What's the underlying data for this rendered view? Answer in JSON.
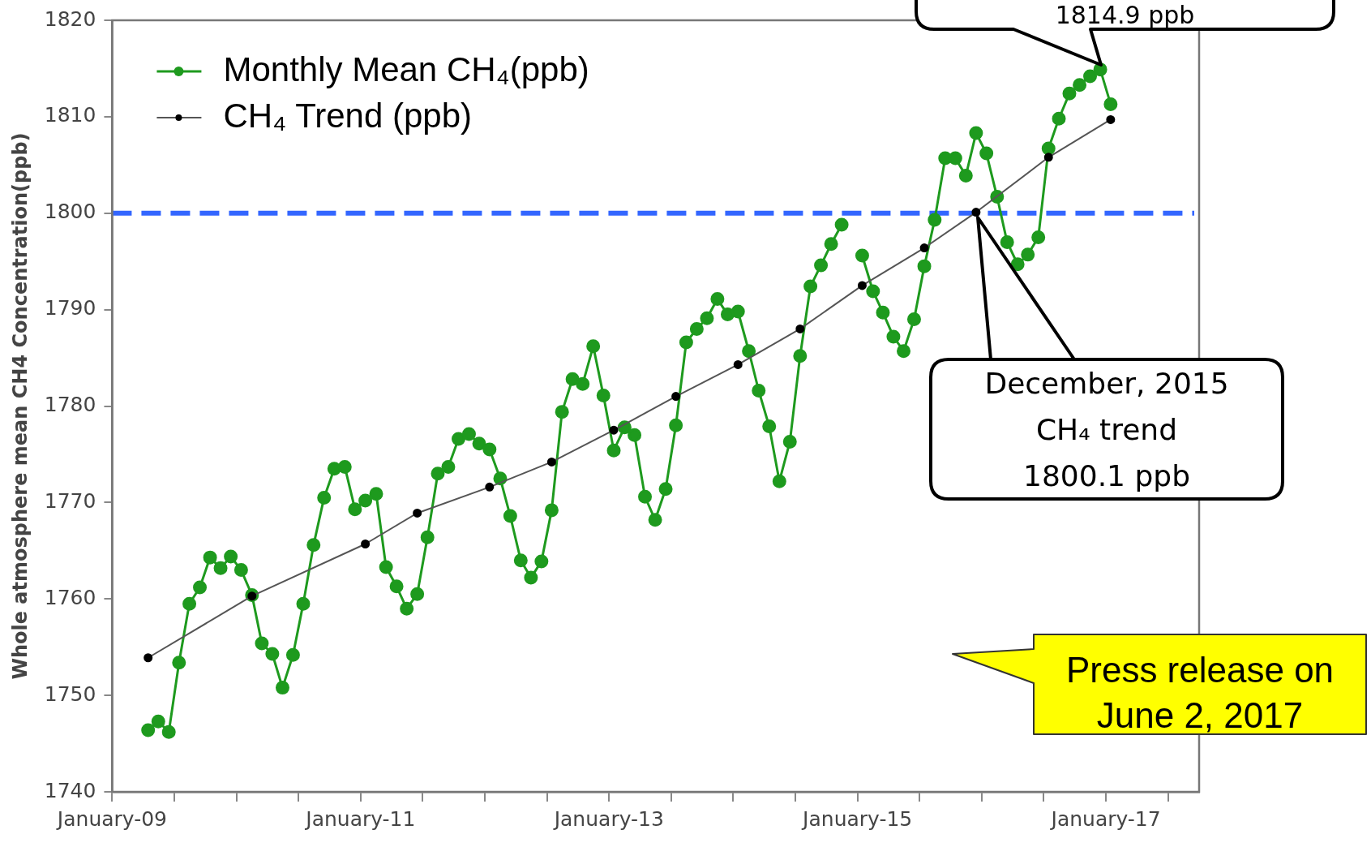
{
  "chart_data": {
    "type": "line",
    "ylabel": "Whole atmosphere mean CH4 Concentration(ppb)",
    "legend": "top left",
    "marker": "circle",
    "grid": false,
    "x": [
      "2009-04-15",
      "2009-05-15",
      "2009-06-15",
      "2009-07-15",
      "2009-08-15",
      "2009-09-15",
      "2009-10-15",
      "2009-11-15",
      "2009-12-15",
      "2010-01-15",
      "2010-02-15",
      "2010-03-15",
      "2010-04-15",
      "2010-05-15",
      "2010-06-15",
      "2010-07-15",
      "2010-08-15",
      "2010-09-15",
      "2010-10-15",
      "2010-11-15",
      "2010-12-15",
      "2011-01-15",
      "2011-02-15",
      "2011-03-15",
      "2011-04-15",
      "2011-05-15",
      "2011-06-15",
      "2011-07-15",
      "2011-08-15",
      "2011-09-15",
      "2011-10-15",
      "2011-11-15",
      "2011-12-15",
      "2012-01-15",
      "2012-02-15",
      "2012-03-15",
      "2012-04-15",
      "2012-05-15",
      "2012-06-15",
      "2012-07-15",
      "2012-08-15",
      "2012-09-15",
      "2012-10-15",
      "2012-11-15",
      "2012-12-15",
      "2013-01-15",
      "2013-02-15",
      "2013-03-15",
      "2013-04-15",
      "2013-05-15",
      "2013-06-15",
      "2013-07-15",
      "2013-08-15",
      "2013-09-15",
      "2013-10-15",
      "2013-11-15",
      "2013-12-15",
      "2014-01-15",
      "2014-02-15",
      "2014-03-15",
      "2014-04-15",
      "2014-05-15",
      "2014-06-15",
      "2014-07-15",
      "2014-08-15",
      "2014-09-15",
      "2014-10-15",
      "2014-11-15",
      "2014-12-15",
      "2015-01-15",
      "2015-02-15",
      "2015-03-15",
      "2015-04-15",
      "2015-05-15",
      "2015-06-15",
      "2015-07-15",
      "2015-08-15",
      "2015-09-15",
      "2015-10-15",
      "2015-11-15",
      "2015-12-15",
      "2016-01-15",
      "2016-02-15",
      "2016-03-15",
      "2016-04-15",
      "2016-05-15",
      "2016-06-15",
      "2016-07-15",
      "2016-08-15",
      "2016-09-15",
      "2016-10-15",
      "2016-11-15",
      "2016-12-15",
      "2017-01-15"
    ],
    "series": [
      {
        "name": "Monthly Mean CH₄(ppb)",
        "color": "#1e9a1e",
        "values": [
          1746.4,
          1747.3,
          1746.2,
          1753.4,
          1759.5,
          1761.2,
          1764.3,
          1763.2,
          1764.4,
          1763.0,
          1760.4,
          1755.4,
          1754.3,
          1750.8,
          1754.2,
          1759.5,
          1765.6,
          1770.5,
          1773.5,
          1773.7,
          1769.3,
          1770.2,
          1770.9,
          1763.3,
          1761.3,
          1759.0,
          1760.5,
          1766.4,
          1773.0,
          1773.7,
          1776.6,
          1777.1,
          1776.1,
          1775.5,
          1772.5,
          1768.6,
          1764.0,
          1762.2,
          1763.9,
          1769.2,
          1779.4,
          1782.8,
          1782.3,
          1786.2,
          1781.1,
          1775.4,
          1777.8,
          1777.0,
          1770.6,
          1768.2,
          1771.4,
          1778.0,
          1786.6,
          1788.0,
          1789.1,
          1791.1,
          1789.5,
          1789.8,
          1785.7,
          1781.6,
          1777.9,
          1772.2,
          1776.3,
          1785.2,
          1792.4,
          1794.6,
          1796.8,
          1798.8,
          null,
          1795.6,
          1791.9,
          1789.7,
          1787.2,
          1785.7,
          1789.0,
          1794.5,
          1799.3,
          1805.7,
          1805.7,
          1803.9,
          1808.3,
          1806.2,
          1801.7,
          1797.0,
          1794.7,
          1795.7,
          1797.5,
          1806.7,
          1809.8,
          1812.4,
          1813.3,
          1814.2,
          1814.9,
          1811.3
        ]
      },
      {
        "name": "CH₄ Trend (ppb)",
        "color": "#000000",
        "x": [
          "2009-04-15",
          "2010-02-15",
          "2011-01-15",
          "2011-06-15",
          "2012-01-15",
          "2012-07-15",
          "2013-01-15",
          "2013-07-15",
          "2014-01-15",
          "2014-07-15",
          "2015-01-15",
          "2015-07-15",
          "2015-12-15",
          "2016-07-15",
          "2017-01-15"
        ],
        "values": [
          1753.9,
          1760.3,
          1765.7,
          1768.9,
          1771.6,
          1774.2,
          1777.5,
          1781.0,
          1784.3,
          1788.0,
          1792.5,
          1796.4,
          1800.1,
          1805.8,
          1809.7
        ]
      }
    ],
    "xlim": [
      "2009-01",
      "2017-10"
    ],
    "xticks": [
      {
        "value": "2009-01",
        "label": "January-09"
      },
      {
        "value": "2009-07",
        "label": null
      },
      {
        "value": "2010-01",
        "label": null
      },
      {
        "value": "2010-07",
        "label": null
      },
      {
        "value": "2011-01",
        "label": "January-11"
      },
      {
        "value": "2011-07",
        "label": null
      },
      {
        "value": "2012-01",
        "label": null
      },
      {
        "value": "2012-07",
        "label": null
      },
      {
        "value": "2013-01",
        "label": "January-13"
      },
      {
        "value": "2013-07",
        "label": null
      },
      {
        "value": "2014-01",
        "label": null
      },
      {
        "value": "2014-07",
        "label": null
      },
      {
        "value": "2015-01",
        "label": "January-15"
      },
      {
        "value": "2015-07",
        "label": null
      },
      {
        "value": "2016-01",
        "label": null
      },
      {
        "value": "2016-07",
        "label": null
      },
      {
        "value": "2017-01",
        "label": "January-17"
      },
      {
        "value": "2017-07",
        "label": null
      }
    ],
    "ylim": [
      1740,
      1820
    ],
    "yticks": [
      1740,
      1750,
      1760,
      1770,
      1780,
      1790,
      1800,
      1810,
      1820
    ],
    "ref_lines": [
      {
        "axis": "y",
        "value": 1800,
        "color": "#3366ff",
        "line_style": "dashed"
      }
    ],
    "annotations": [
      "1814.9 ppb",
      "December, 2015\nCH₄ trend\n1800.1 ppb",
      "Press release on\nJune 2, 2017"
    ]
  }
}
